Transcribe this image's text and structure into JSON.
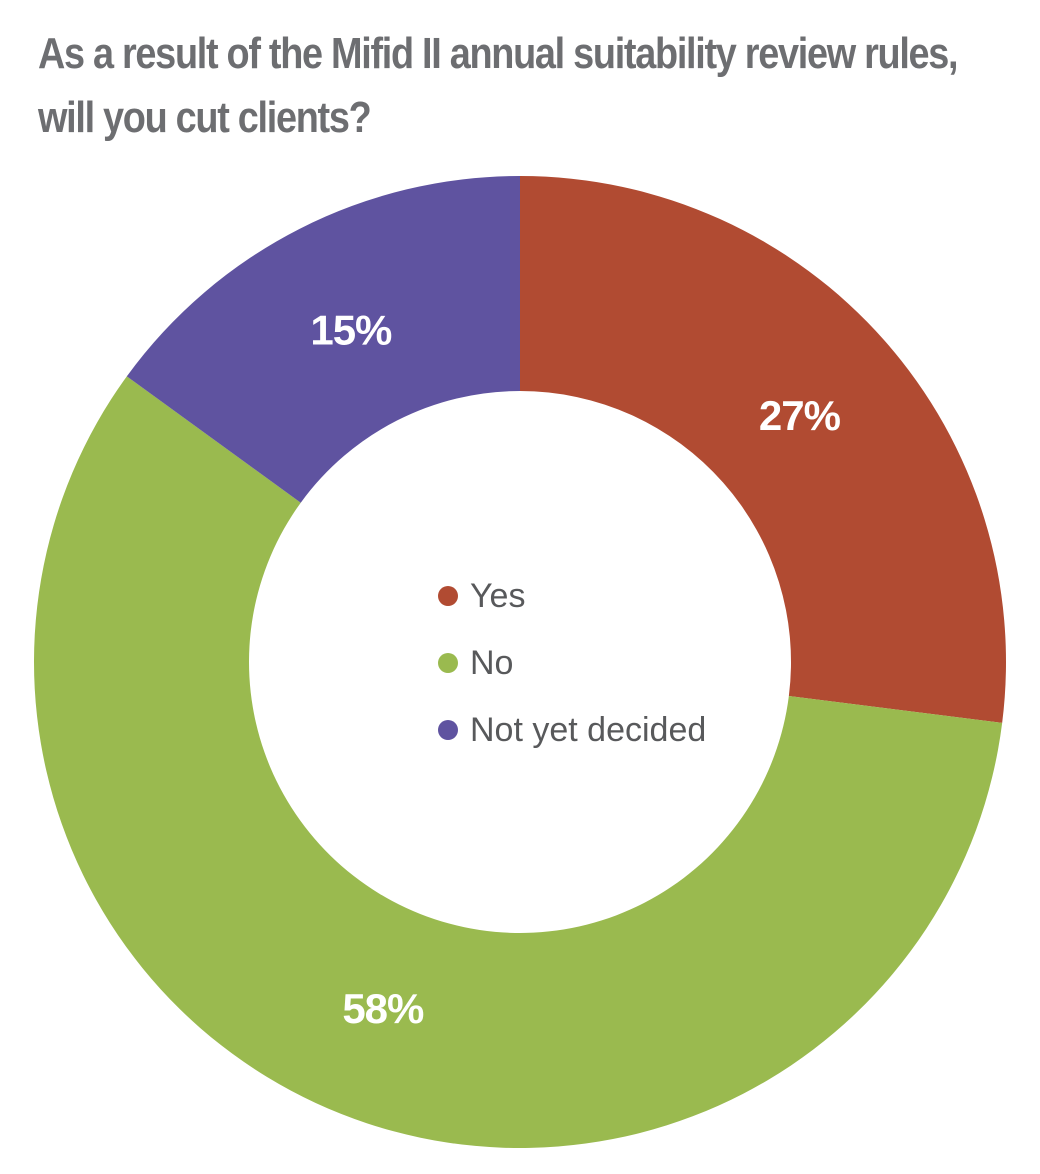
{
  "chart_data": {
    "type": "pie",
    "title": "As a result of the Mifid II annual suitability review rules, will you cut clients?",
    "donut": true,
    "legend_position": "center",
    "slices": [
      {
        "label": "Yes",
        "value": 27,
        "value_label": "27%",
        "color": "#b14b32"
      },
      {
        "label": "No",
        "value": 58,
        "value_label": "58%",
        "color": "#9aba4f"
      },
      {
        "label": "Not yet decided",
        "value": 15,
        "value_label": "15%",
        "color": "#5f53a0"
      }
    ]
  }
}
